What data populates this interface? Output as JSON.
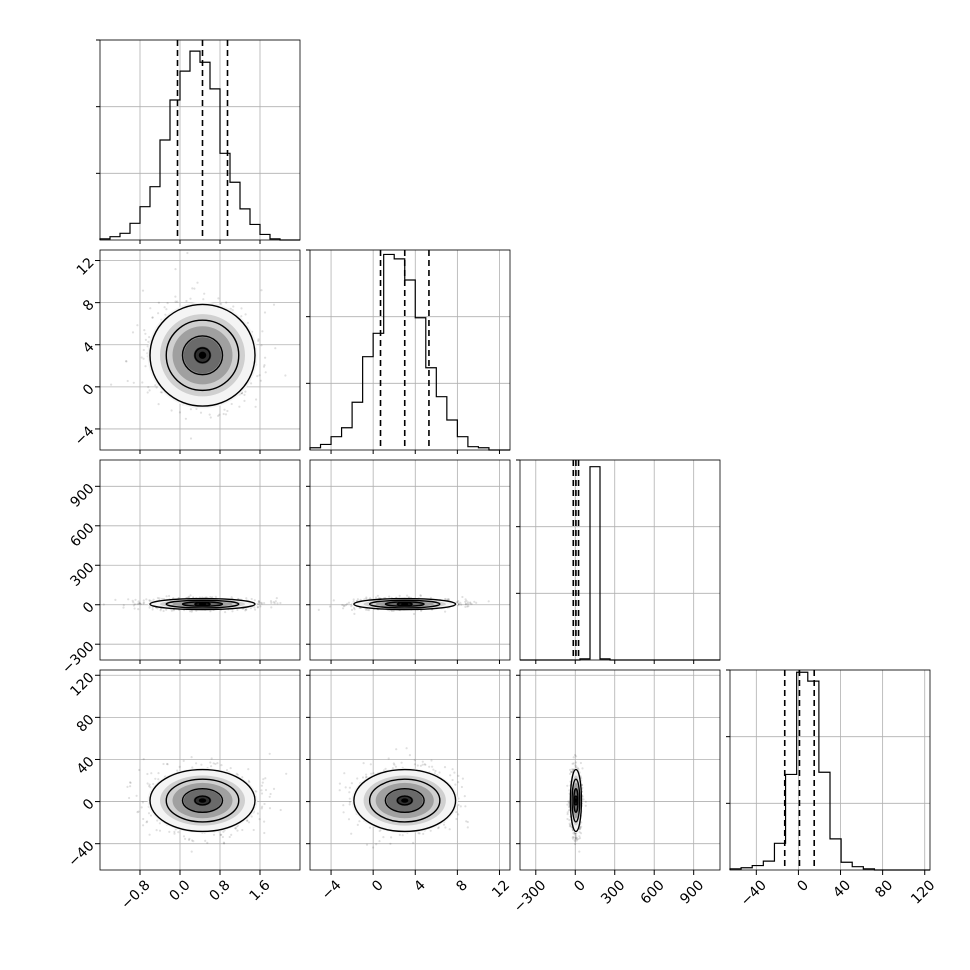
{
  "chart_data": {
    "type": "corner",
    "grid": true,
    "line_color": "#000000",
    "fill_color": "#808080",
    "tick_labels": {
      "p0": [
        "−0.8",
        "0.0",
        "0.8",
        "1.6"
      ],
      "p1": [
        "−4",
        "0",
        "4",
        "8",
        "12"
      ],
      "p2": [
        "−300",
        "0",
        "300",
        "600",
        "900"
      ],
      "p3": [
        "−40",
        "0",
        "40",
        "80",
        "120"
      ]
    },
    "params": [
      {
        "range": [
          -1.6,
          2.4
        ],
        "ticks": [
          -0.8,
          0.0,
          0.8,
          1.6
        ],
        "quantiles": [
          -0.05,
          0.45,
          0.95
        ],
        "hist_counts": [
          1,
          3,
          6,
          15,
          30,
          48,
          90,
          126,
          152,
          170,
          160,
          136,
          78,
          52,
          28,
          14,
          5,
          1,
          0,
          0
        ],
        "hist_ylim": [
          0,
          180
        ]
      },
      {
        "range": [
          -6,
          13
        ],
        "ticks": [
          -4,
          0,
          4,
          8,
          12
        ],
        "quantiles": [
          0.7,
          3.0,
          5.3
        ],
        "hist_counts": [
          2,
          5,
          12,
          20,
          43,
          84,
          105,
          176,
          172,
          153,
          119,
          74,
          48,
          27,
          12,
          3,
          2,
          0,
          0
        ],
        "hist_ylim": [
          0,
          180
        ]
      },
      {
        "range": [
          -420,
          1100
        ],
        "ticks": [
          -300,
          0,
          300,
          600,
          900
        ],
        "quantiles": [
          -15,
          5,
          25
        ],
        "hist_counts": [
          0,
          0,
          0,
          0,
          0,
          0,
          1,
          174,
          1,
          0,
          0,
          0,
          0,
          0,
          0,
          0,
          0,
          0,
          0,
          0
        ],
        "hist_ylim": [
          0,
          180
        ]
      },
      {
        "range": [
          -65,
          125
        ],
        "ticks": [
          -40,
          0,
          40,
          80,
          120
        ],
        "quantiles": [
          -13,
          1,
          15
        ],
        "hist_counts": [
          1,
          2,
          4,
          8,
          24,
          86,
          178,
          170,
          88,
          28,
          7,
          3,
          1,
          0,
          0,
          0,
          0,
          0
        ],
        "hist_ylim": [
          0,
          180
        ]
      }
    ],
    "pairs": [
      {
        "x": 0,
        "y": 1,
        "center": [
          0.45,
          3.0
        ],
        "spread": [
          0.5,
          2.3
        ]
      },
      {
        "x": 0,
        "y": 2,
        "center": [
          0.45,
          5
        ],
        "spread": [
          0.5,
          20
        ]
      },
      {
        "x": 1,
        "y": 2,
        "center": [
          3.0,
          5
        ],
        "spread": [
          2.3,
          20
        ]
      },
      {
        "x": 0,
        "y": 3,
        "center": [
          0.45,
          1
        ],
        "spread": [
          0.5,
          14
        ]
      },
      {
        "x": 1,
        "y": 3,
        "center": [
          3.0,
          1
        ],
        "spread": [
          2.3,
          14
        ]
      },
      {
        "x": 2,
        "y": 3,
        "center": [
          5,
          1
        ],
        "spread": [
          20,
          14
        ]
      }
    ]
  }
}
